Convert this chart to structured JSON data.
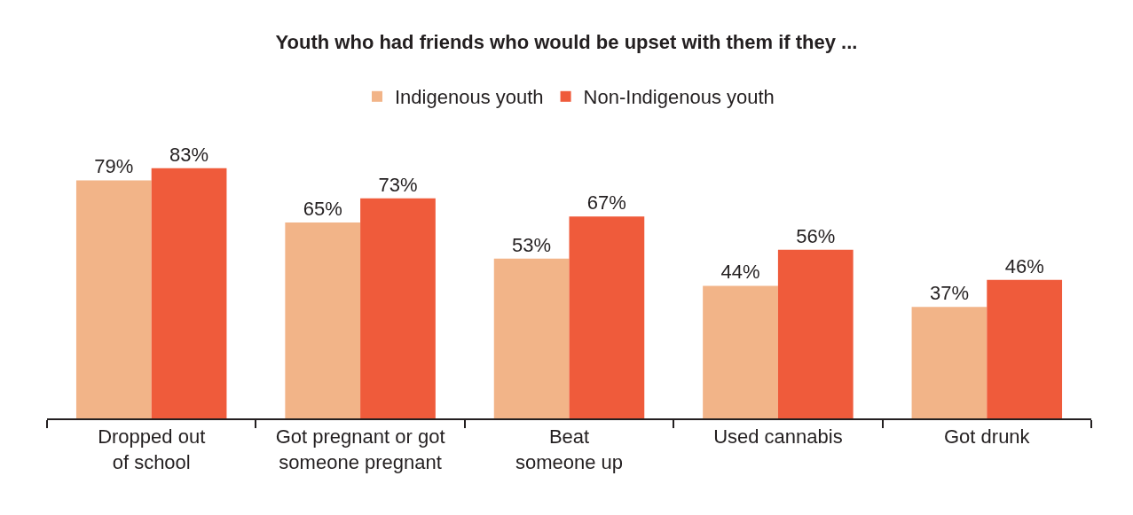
{
  "chart_data": {
    "type": "bar",
    "title": "Youth who had friends who would be upset with them if they ...",
    "categories": [
      "Dropped out\nof school",
      "Got pregnant or got\nsomeone pregnant",
      "Beat\nsomeone up",
      "Used cannabis",
      "Got drunk"
    ],
    "series": [
      {
        "name": "Indigenous youth",
        "color": "#f2b488",
        "values": [
          79,
          65,
          53,
          44,
          37
        ],
        "value_labels": [
          "79%",
          "65%",
          "53%",
          "44%",
          "37%"
        ]
      },
      {
        "name": "Non-Indigenous youth",
        "color": "#ef5b3b",
        "values": [
          83,
          73,
          67,
          56,
          46
        ],
        "value_labels": [
          "83%",
          "73%",
          "67%",
          "56%",
          "46%"
        ]
      }
    ],
    "tick_labels": "x",
    "legend": "top"
  }
}
